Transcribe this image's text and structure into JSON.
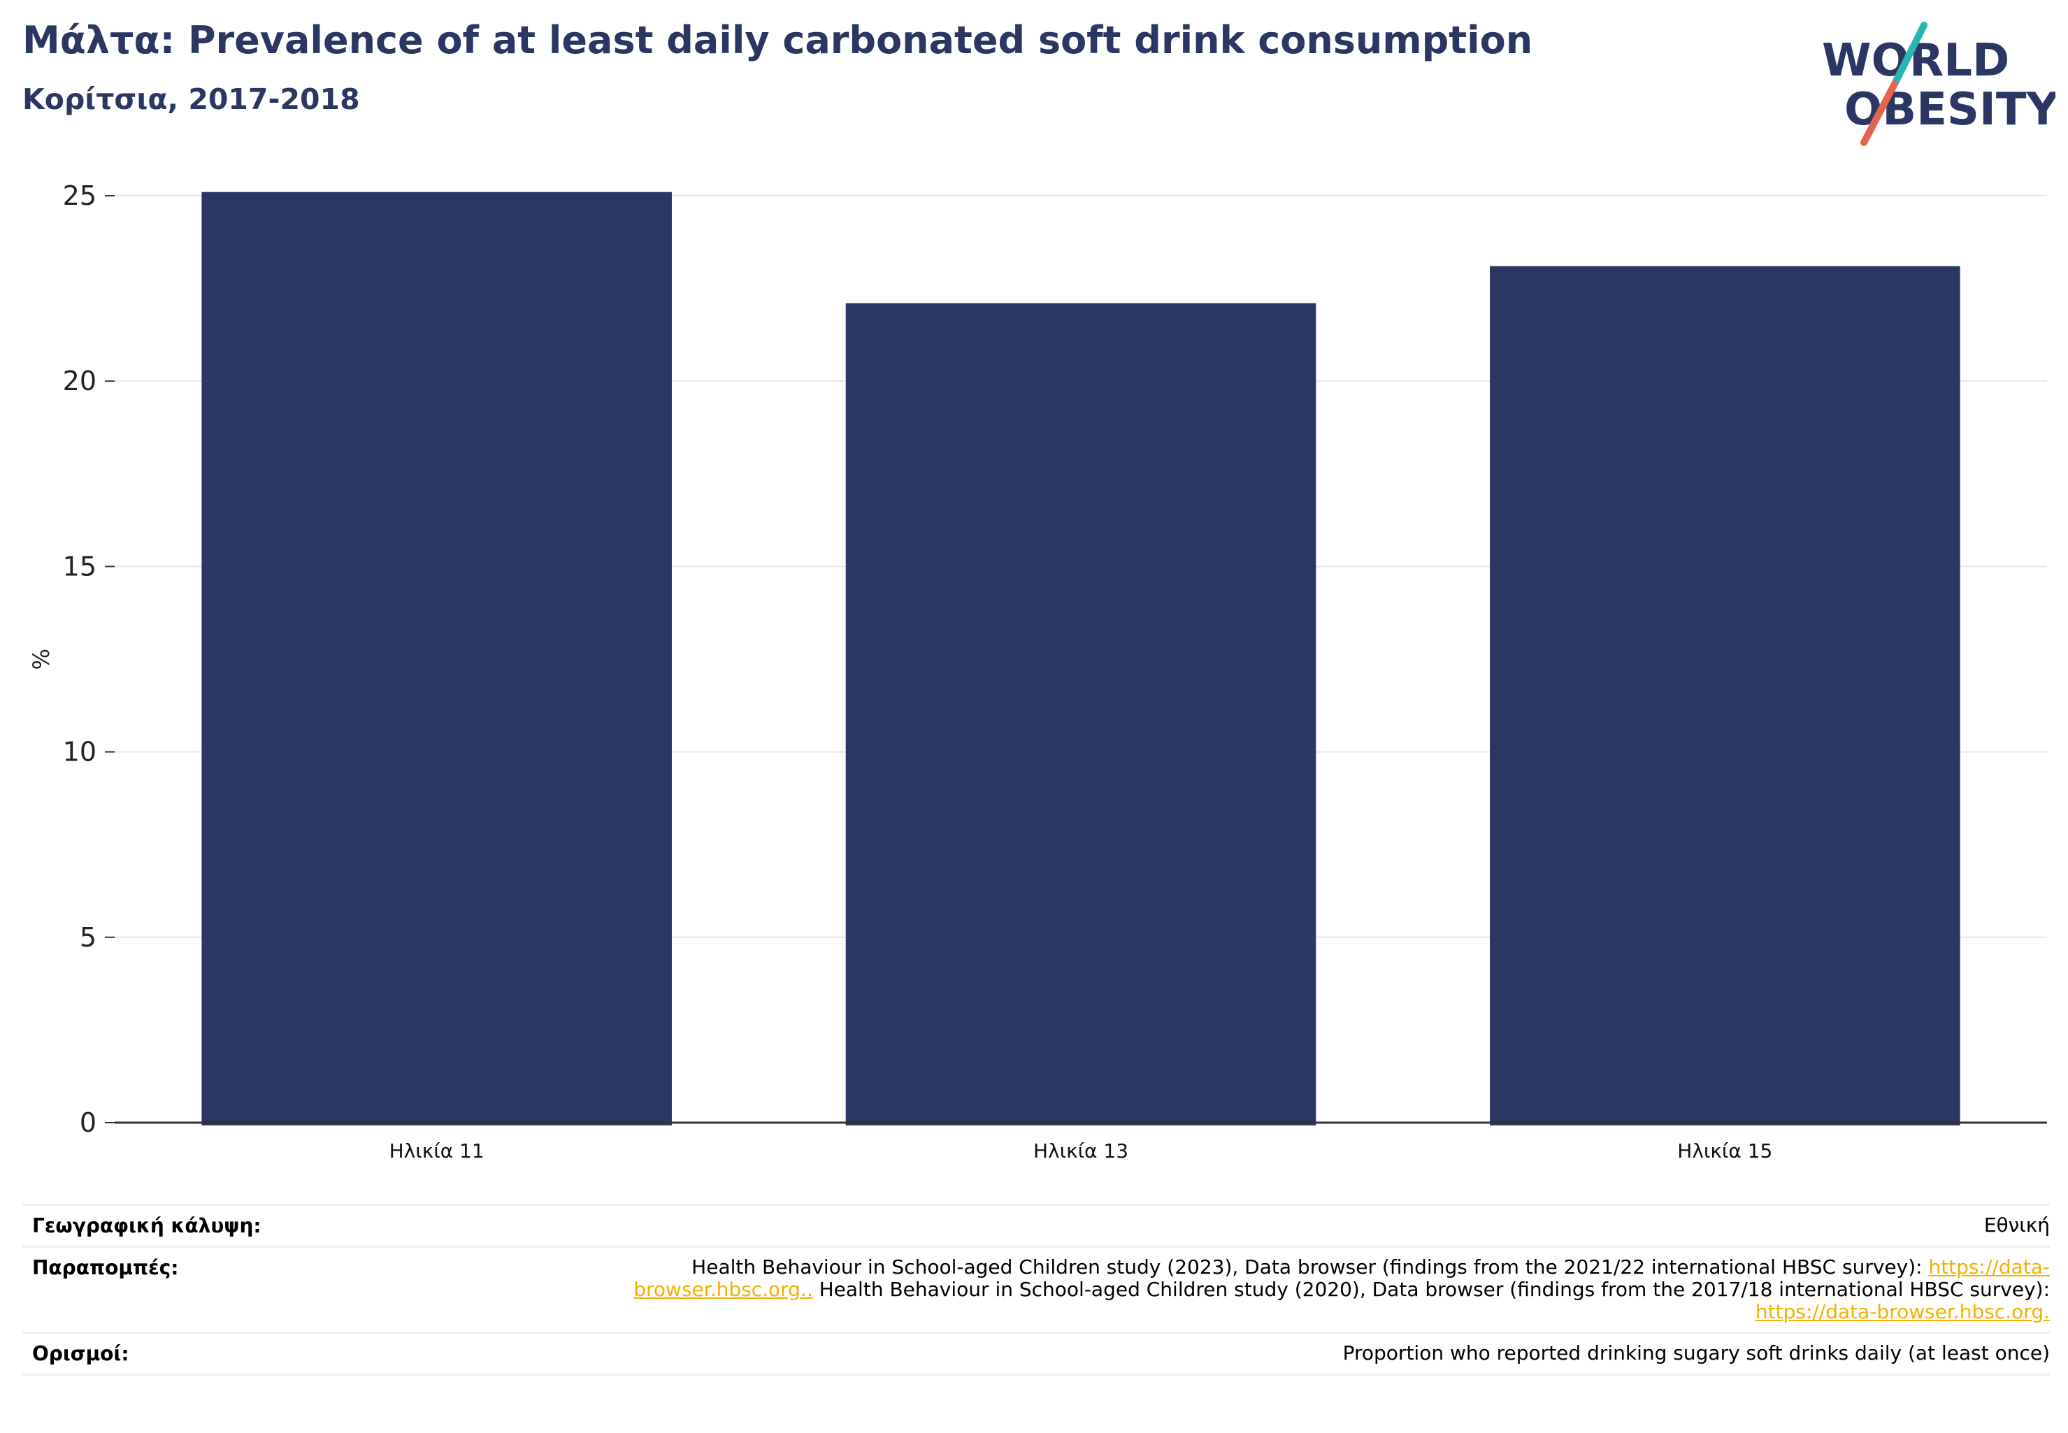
{
  "header": {
    "title": "Μάλτα: Prevalence of at least daily carbonated soft drink consumption",
    "subtitle": "Κορίτσια, 2017-2018"
  },
  "logo": {
    "line1": "WORLD",
    "line2": "OBESITY",
    "colors": {
      "text": "#2b3663",
      "slash_teal": "#2ab5b0",
      "slash_red": "#e2654f"
    }
  },
  "chart_data": {
    "type": "bar",
    "categories": [
      "Ηλικία 11",
      "Ηλικία 13",
      "Ηλικία 15"
    ],
    "values": [
      25.1,
      22.1,
      23.1
    ],
    "ylabel": "%",
    "ylim": [
      0,
      25
    ],
    "yticks": [
      "0",
      "5",
      "10",
      "15",
      "20",
      "25"
    ],
    "grid": true,
    "bar_color": "#2b3663"
  },
  "footer": {
    "coverage_label": "Γεωγραφική κάλυψη:",
    "coverage_value": "Εθνική",
    "refs_label": "Παραπομπές:",
    "refs_text_1": "Health Behaviour in School-aged Children study (2023), Data browser (findings from the 2021/22 international HBSC survey): ",
    "refs_link_1": "https://data-browser.hbsc.org..",
    "refs_text_2": " Health Behaviour in School-aged Children study (2020), Data browser (findings from the 2017/18 international HBSC survey): ",
    "refs_link_2": "https://data-browser.hbsc.org.",
    "defs_label": "Ορισμοί:",
    "defs_value": "Proportion who reported drinking sugary soft drinks daily (at least once)"
  }
}
